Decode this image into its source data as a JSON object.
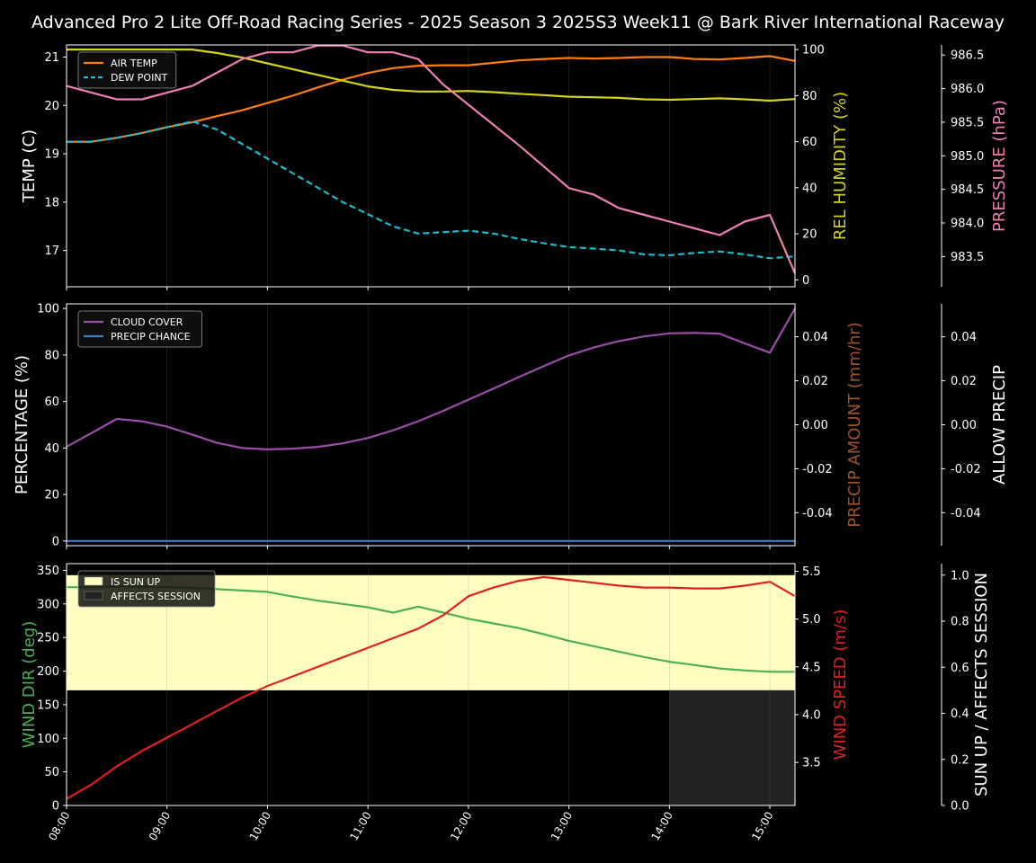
{
  "title": "Advanced Pro 2 Lite Off-Road Racing Series - 2025 Season 3 2025S3 Week11 @ Bark River International Raceway",
  "colors": {
    "background": "#000000",
    "air_temp": "#ff7f0e",
    "dew_point": "#17becf",
    "humidity": "#d4d41a",
    "pressure": "#f07fb4",
    "cloud_cover": "#9b4ea8",
    "precip_chance": "#3f7fc1",
    "precip_amount_label": "#a0522d",
    "wind_dir": "#4caf50",
    "wind_speed": "#e02020",
    "sun_up_fill": "#ffffc4",
    "affects_fill": "#222222"
  },
  "chart_data": [
    {
      "type": "line",
      "x_times": [
        "08:00",
        "08:15",
        "08:30",
        "08:45",
        "09:00",
        "09:15",
        "09:30",
        "09:45",
        "10:00",
        "10:15",
        "10:30",
        "10:45",
        "11:00",
        "11:15",
        "11:30",
        "11:45",
        "12:00",
        "12:15",
        "12:30",
        "12:45",
        "13:00",
        "13:15",
        "13:30",
        "13:45",
        "14:00",
        "14:15",
        "14:30",
        "14:45",
        "15:00",
        "15:15"
      ],
      "xticks": [
        "08:00",
        "09:00",
        "10:00",
        "11:00",
        "12:00",
        "13:00",
        "14:00",
        "15:00"
      ],
      "ylabel": "TEMP (C)",
      "ylim": [
        16.25,
        21.25
      ],
      "yticks": [
        17,
        18,
        19,
        20,
        21
      ],
      "y2label": "REL HUMIDITY (%)",
      "y2lim": [
        -3,
        102
      ],
      "y2ticks": [
        0,
        20,
        40,
        60,
        80,
        100
      ],
      "y3label": "PRESSURE (hPa)",
      "y3lim": [
        983.05,
        986.65
      ],
      "y3ticks": [
        983.5,
        984.0,
        984.5,
        985.0,
        985.5,
        986.0,
        986.5
      ],
      "legend_position": "top-left",
      "series": [
        {
          "name": "AIR TEMP",
          "axis": "left",
          "style": "solid",
          "values": [
            19.25,
            19.25,
            19.33,
            19.43,
            19.55,
            19.65,
            19.78,
            19.9,
            20.05,
            20.2,
            20.37,
            20.53,
            20.67,
            20.77,
            20.82,
            20.83,
            20.83,
            20.88,
            20.93,
            20.96,
            20.98,
            20.97,
            20.98,
            21.0,
            21.0,
            20.96,
            20.95,
            20.98,
            21.02,
            20.92
          ]
        },
        {
          "name": "DEW POINT",
          "axis": "left",
          "style": "dashed",
          "values": [
            19.25,
            19.25,
            19.33,
            19.43,
            19.55,
            19.67,
            19.5,
            19.2,
            18.9,
            18.6,
            18.3,
            18.0,
            17.75,
            17.5,
            17.35,
            17.38,
            17.41,
            17.35,
            17.24,
            17.15,
            17.07,
            17.04,
            17.0,
            16.92,
            16.9,
            16.95,
            16.98,
            16.92,
            16.84,
            16.88
          ]
        },
        {
          "name": "REL HUMIDITY",
          "axis": "right",
          "style": "solid",
          "values": [
            100,
            100,
            100,
            100,
            100,
            100,
            98.5,
            96.5,
            94,
            91.5,
            89,
            86.5,
            84,
            82.5,
            81.8,
            81.8,
            82,
            81.5,
            80.8,
            80.2,
            79.5,
            79.3,
            79,
            78.4,
            78.2,
            78.5,
            78.8,
            78.4,
            77.8,
            78.5
          ]
        },
        {
          "name": "PRESSURE",
          "axis": "third",
          "style": "solid",
          "values": [
            986.04,
            985.94,
            985.84,
            985.84,
            985.94,
            986.04,
            986.24,
            986.44,
            986.54,
            986.54,
            986.64,
            986.64,
            986.54,
            986.54,
            986.44,
            986.06,
            985.76,
            985.46,
            985.16,
            984.84,
            984.52,
            984.42,
            984.22,
            984.12,
            984.02,
            983.92,
            983.82,
            984.02,
            984.12,
            983.25
          ]
        }
      ]
    },
    {
      "type": "line",
      "x_times": [
        "08:00",
        "08:15",
        "08:30",
        "08:45",
        "09:00",
        "09:15",
        "09:30",
        "09:45",
        "10:00",
        "10:15",
        "10:30",
        "10:45",
        "11:00",
        "11:15",
        "11:30",
        "11:45",
        "12:00",
        "12:15",
        "12:30",
        "12:45",
        "13:00",
        "13:15",
        "13:30",
        "13:45",
        "14:00",
        "14:15",
        "14:30",
        "14:45",
        "15:00",
        "15:15"
      ],
      "xticks": [
        "08:00",
        "09:00",
        "10:00",
        "11:00",
        "12:00",
        "13:00",
        "14:00",
        "15:00"
      ],
      "ylabel": "PERCENTAGE (%)",
      "ylim": [
        -2,
        102
      ],
      "yticks": [
        0,
        20,
        40,
        60,
        80,
        100
      ],
      "y2label": "PRECIP AMOUNT (mm/hr)",
      "y2lim": [
        -0.055,
        0.055
      ],
      "y2ticks": [
        -0.04,
        -0.02,
        0.0,
        0.02,
        0.04
      ],
      "y3label": "ALLOW PRECIP",
      "y3lim": [
        -0.055,
        0.055
      ],
      "y3ticks": [
        -0.04,
        -0.02,
        0.0,
        0.02,
        0.04
      ],
      "legend_position": "top-left",
      "series": [
        {
          "name": "CLOUD COVER",
          "axis": "left",
          "values": [
            40.5,
            46.5,
            52.5,
            51.5,
            49.2,
            45.8,
            42.2,
            40.0,
            39.4,
            39.7,
            40.5,
            42.0,
            44.3,
            47.6,
            51.5,
            56.0,
            60.8,
            65.6,
            70.5,
            75.2,
            79.8,
            83.3,
            86.0,
            88.0,
            89.3,
            89.5,
            89.2,
            85.0,
            81.0,
            100.0
          ]
        },
        {
          "name": "PRECIP CHANCE",
          "axis": "left",
          "values": [
            0,
            0,
            0,
            0,
            0,
            0,
            0,
            0,
            0,
            0,
            0,
            0,
            0,
            0,
            0,
            0,
            0,
            0,
            0,
            0,
            0,
            0,
            0,
            0,
            0,
            0,
            0,
            0,
            0,
            0
          ]
        }
      ]
    },
    {
      "type": "line",
      "x_times": [
        "08:00",
        "08:15",
        "08:30",
        "08:45",
        "09:00",
        "09:15",
        "09:30",
        "09:45",
        "10:00",
        "10:15",
        "10:30",
        "10:45",
        "11:00",
        "11:15",
        "11:30",
        "11:45",
        "12:00",
        "12:15",
        "12:30",
        "12:45",
        "13:00",
        "13:15",
        "13:30",
        "13:45",
        "14:00",
        "14:15",
        "14:30",
        "14:45",
        "15:00",
        "15:15"
      ],
      "xticks": [
        "08:00",
        "09:00",
        "10:00",
        "11:00",
        "12:00",
        "13:00",
        "14:00",
        "15:00"
      ],
      "ylabel": "WIND DIR (deg)",
      "ylim": [
        0,
        360
      ],
      "yticks": [
        0,
        50,
        100,
        150,
        200,
        250,
        300,
        350
      ],
      "y2label": "WIND SPEED (m/s)",
      "y2lim": [
        3.05,
        5.58
      ],
      "y2ticks": [
        3.5,
        4.0,
        4.5,
        5.0,
        5.5
      ],
      "y3label": "SUN UP / AFFECTS SESSION",
      "y3lim": [
        0,
        1.05
      ],
      "y3ticks": [
        0.0,
        0.2,
        0.4,
        0.6,
        0.8,
        1.0
      ],
      "legend_position": "top-left",
      "bands": [
        {
          "name": "IS SUN UP",
          "from": "08:00",
          "to": "15:15",
          "y_from": 0.5,
          "y_to": 1.0
        },
        {
          "name": "AFFECTS SESSION",
          "from": "14:00",
          "to": "15:15",
          "y_from": 0.0,
          "y_to": 0.5
        }
      ],
      "series": [
        {
          "name": "WIND DIR",
          "axis": "left",
          "values": [
            325,
            325,
            326,
            326,
            325,
            324,
            322,
            320,
            318,
            311,
            305,
            300,
            295,
            287,
            296,
            287,
            278,
            271,
            264,
            255,
            245,
            237,
            229,
            221,
            214,
            209,
            204,
            201,
            199,
            199
          ]
        },
        {
          "name": "WIND SPEED",
          "axis": "right",
          "values": [
            3.12,
            3.27,
            3.46,
            3.62,
            3.76,
            3.9,
            4.04,
            4.18,
            4.3,
            4.4,
            4.5,
            4.6,
            4.7,
            4.8,
            4.9,
            5.04,
            5.24,
            5.33,
            5.4,
            5.44,
            5.41,
            5.38,
            5.35,
            5.33,
            5.33,
            5.32,
            5.32,
            5.35,
            5.39,
            5.24
          ]
        }
      ]
    }
  ]
}
